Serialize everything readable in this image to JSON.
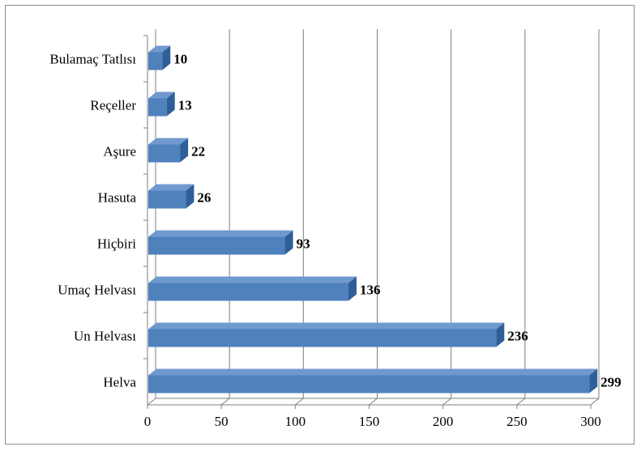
{
  "chart_data": {
    "type": "bar",
    "orientation": "horizontal",
    "style": "3d",
    "categories": [
      "Bulamaç Tatlısı",
      "Reçeller",
      "Aşure",
      "Hasuta",
      "Hiçbiri",
      "Umaç Helvası",
      "Un Helvası",
      "Helva"
    ],
    "values": [
      10,
      13,
      22,
      26,
      93,
      136,
      236,
      299
    ],
    "xlim": [
      0,
      300
    ],
    "xticks": [
      "0",
      "50",
      "100",
      "150",
      "200",
      "250",
      "300"
    ],
    "grid": "vertical",
    "legend": "none",
    "title": "",
    "xlabel": "",
    "ylabel": "",
    "colors": {
      "bar_front": "#4f81bd",
      "bar_top": "#6f99cf",
      "bar_side": "#2f5f98",
      "grid": "#7f7f7f"
    }
  }
}
